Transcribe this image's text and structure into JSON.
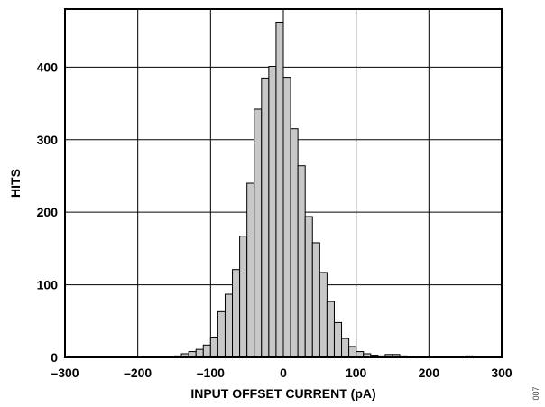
{
  "figure_code": "007",
  "chart_data": {
    "type": "bar",
    "subtype": "histogram",
    "xlabel": "INPUT OFFSET CURRENT (pA)",
    "ylabel": "HITS",
    "xlim": [
      -300,
      300
    ],
    "ylim": [
      0,
      480
    ],
    "x_ticks": [
      -300,
      -200,
      -100,
      0,
      100,
      200,
      300
    ],
    "x_tick_labels": [
      "–300",
      "–200",
      "–100",
      "0",
      "100",
      "200",
      "300"
    ],
    "y_ticks": [
      0,
      100,
      200,
      300,
      400
    ],
    "y_tick_labels": [
      "0",
      "100",
      "200",
      "300",
      "400"
    ],
    "grid": true,
    "bin_width": 10,
    "bar_color": "#c8c8c8",
    "bins": [
      {
        "x": -145,
        "y": 2
      },
      {
        "x": -135,
        "y": 5
      },
      {
        "x": -125,
        "y": 8
      },
      {
        "x": -115,
        "y": 11
      },
      {
        "x": -105,
        "y": 17
      },
      {
        "x": -95,
        "y": 28
      },
      {
        "x": -85,
        "y": 63
      },
      {
        "x": -75,
        "y": 87
      },
      {
        "x": -65,
        "y": 121
      },
      {
        "x": -55,
        "y": 167
      },
      {
        "x": -45,
        "y": 240
      },
      {
        "x": -35,
        "y": 342
      },
      {
        "x": -25,
        "y": 385
      },
      {
        "x": -15,
        "y": 401
      },
      {
        "x": -5,
        "y": 462
      },
      {
        "x": 5,
        "y": 386
      },
      {
        "x": 15,
        "y": 315
      },
      {
        "x": 25,
        "y": 264
      },
      {
        "x": 35,
        "y": 194
      },
      {
        "x": 45,
        "y": 158
      },
      {
        "x": 55,
        "y": 117
      },
      {
        "x": 65,
        "y": 77
      },
      {
        "x": 75,
        "y": 48
      },
      {
        "x": 85,
        "y": 26
      },
      {
        "x": 95,
        "y": 15
      },
      {
        "x": 105,
        "y": 8
      },
      {
        "x": 115,
        "y": 5
      },
      {
        "x": 125,
        "y": 3
      },
      {
        "x": 135,
        "y": 2
      },
      {
        "x": 145,
        "y": 4
      },
      {
        "x": 155,
        "y": 4
      },
      {
        "x": 165,
        "y": 2
      },
      {
        "x": 175,
        "y": 1
      },
      {
        "x": 255,
        "y": 2
      }
    ]
  }
}
